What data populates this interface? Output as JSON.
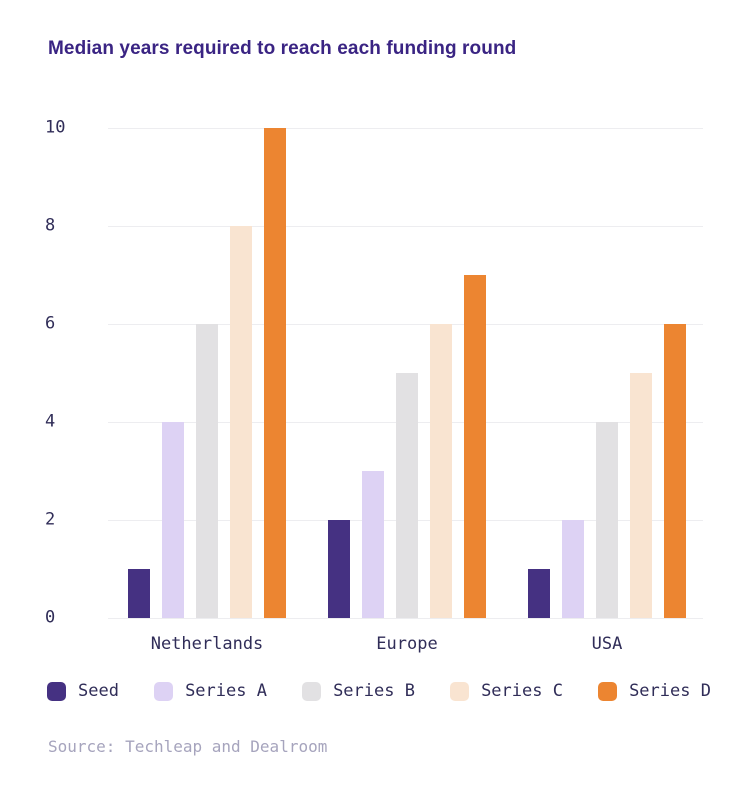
{
  "chart_data": {
    "type": "bar",
    "title": "Median years required to reach each funding round",
    "categories": [
      "Netherlands",
      "Europe",
      "USA"
    ],
    "series": [
      {
        "name": "Seed",
        "color": "#453182",
        "values": [
          1,
          2,
          1
        ]
      },
      {
        "name": "Series A",
        "color": "#DDD2F4",
        "values": [
          4,
          3,
          2
        ]
      },
      {
        "name": "Series B",
        "color": "#E2E1E3",
        "values": [
          6,
          5,
          4
        ]
      },
      {
        "name": "Series C",
        "color": "#F9E4D1",
        "values": [
          8,
          6,
          5
        ]
      },
      {
        "name": "Series D",
        "color": "#EC8531",
        "values": [
          10,
          7,
          6
        ]
      }
    ],
    "y_ticks": [
      0,
      2,
      4,
      6,
      8,
      10
    ],
    "ylim": [
      0,
      10
    ],
    "xlabel": "",
    "ylabel": "",
    "grid": true,
    "legend_position": "bottom",
    "source": "Source: Techleap and Dealroom"
  },
  "style": {
    "background": "#FFFFFF",
    "title_color": "#3A2483",
    "axis_text_color": "#302D58",
    "grid_color": "#EDEDF0",
    "source_color": "#A6A4BD"
  }
}
